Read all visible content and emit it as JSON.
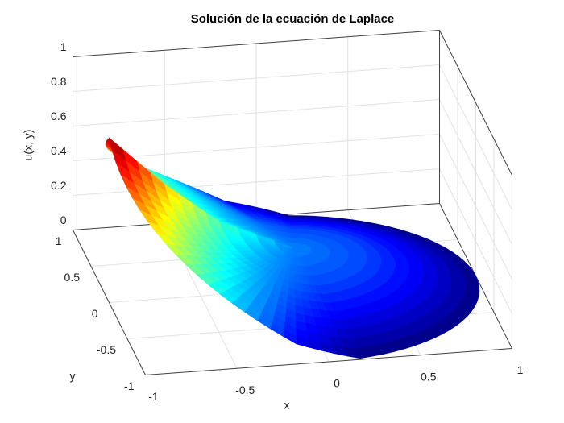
{
  "chart_data": {
    "type": "surface",
    "title": "Solución de la ecuación de Laplace",
    "x_label": "x",
    "y_label": "y",
    "z_label": "u(x, y)",
    "xlim": [
      -1,
      1
    ],
    "ylim": [
      -1,
      1
    ],
    "zlim": [
      0,
      1
    ],
    "xticks": [
      -1,
      -0.5,
      0,
      0.5,
      1
    ],
    "yticks": [
      -1,
      -0.5,
      0,
      0.5,
      1
    ],
    "zticks": [
      0,
      0.2,
      0.4,
      0.6,
      0.8,
      1
    ],
    "grid": true,
    "colormap": "jet",
    "r": [
      0,
      0.4,
      0.7,
      1
    ],
    "theta": [
      0,
      20,
      40,
      60,
      80,
      100,
      120,
      140,
      160,
      180,
      200,
      220,
      240,
      260,
      280,
      300,
      320,
      340
    ],
    "z": [
      [
        0.24,
        0.24,
        0.24,
        0.24,
        0.24,
        0.24,
        0.24,
        0.24,
        0.24,
        0.24,
        0.24,
        0.24,
        0.24,
        0.24,
        0.24,
        0.24,
        0.24,
        0.24
      ],
      [
        0.18,
        0.18,
        0.18,
        0.18,
        0.18,
        0.21,
        0.26,
        0.31,
        0.37,
        0.42,
        0.37,
        0.31,
        0.26,
        0.21,
        0.18,
        0.18,
        0.18,
        0.18
      ],
      [
        0.1,
        0.1,
        0.1,
        0.1,
        0.1,
        0.16,
        0.29,
        0.41,
        0.53,
        0.66,
        0.53,
        0.41,
        0.29,
        0.16,
        0.1,
        0.1,
        0.1,
        0.1
      ],
      [
        0,
        0,
        0,
        0,
        0,
        0.11,
        0.32,
        0.53,
        0.74,
        0.95,
        0.74,
        0.53,
        0.32,
        0.11,
        0,
        0,
        0,
        0
      ]
    ]
  }
}
